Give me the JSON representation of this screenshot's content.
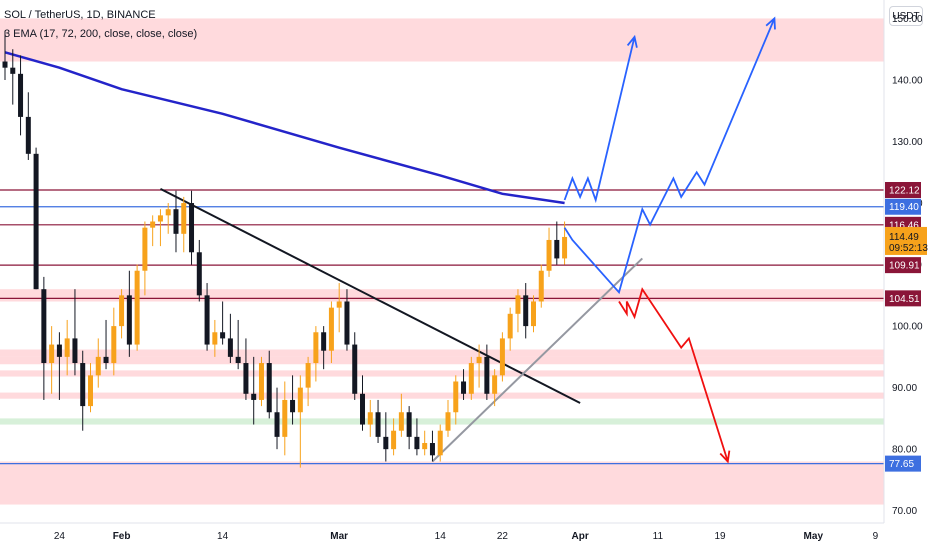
{
  "header": {
    "symbol_line": "SOL / TetherUS, 1D, BINANCE",
    "indicator_line": "3 EMA (17, 72, 200, close, close, close)"
  },
  "currency_button": "USDT",
  "colors": {
    "up": "#f7a21b",
    "down": "#131722",
    "ema": "#2424c9",
    "resistance_line": "#8a1538",
    "blue_level": "#3d6fe0",
    "zone_red": "#ffd1d4",
    "zone_green": "#cdeccf",
    "trend_black": "#131722",
    "trend_gray": "#9598a1",
    "arrow_blue": "#2962ff",
    "arrow_red": "#f01010"
  },
  "chart_data": {
    "type": "candlestick",
    "symbol": "SOL / TetherUS",
    "interval": "1D",
    "exchange": "BINANCE",
    "y_axis": {
      "range": [
        68,
        153
      ],
      "ticks": [
        70,
        80,
        90,
        100,
        110,
        120,
        130,
        140,
        150
      ],
      "tick_labels": [
        "70.00",
        "80.00",
        "90.00",
        "100.00",
        "110.00",
        "120.00",
        "130.00",
        "140.00",
        "150.00"
      ]
    },
    "x_axis": {
      "start_date": "2022-01-17",
      "end_date": "2022-05-11",
      "ticks": [
        {
          "date": "2022-01-24",
          "label": "24"
        },
        {
          "date": "2022-02-01",
          "label": "Feb"
        },
        {
          "date": "2022-02-14",
          "label": "14"
        },
        {
          "date": "2022-03-01",
          "label": "Mar"
        },
        {
          "date": "2022-03-14",
          "label": "14"
        },
        {
          "date": "2022-03-22",
          "label": "22"
        },
        {
          "date": "2022-04-01",
          "label": "Apr"
        },
        {
          "date": "2022-04-11",
          "label": "11"
        },
        {
          "date": "2022-04-19",
          "label": "19"
        },
        {
          "date": "2022-05-01",
          "label": "May"
        },
        {
          "date": "2022-05-09",
          "label": "9"
        }
      ]
    },
    "ohlc": [
      [
        "2022-01-17",
        143,
        148,
        140,
        142
      ],
      [
        "2022-01-18",
        142,
        145,
        136,
        141
      ],
      [
        "2022-01-19",
        141,
        144,
        131,
        134
      ],
      [
        "2022-01-20",
        134,
        138,
        127,
        128
      ],
      [
        "2022-01-21",
        128,
        129,
        106,
        106
      ],
      [
        "2022-01-22",
        106,
        108,
        88,
        94
      ],
      [
        "2022-01-23",
        94,
        100,
        89,
        97
      ],
      [
        "2022-01-24",
        97,
        99,
        88,
        95
      ],
      [
        "2022-01-25",
        95,
        101,
        92,
        98
      ],
      [
        "2022-01-26",
        98,
        106,
        92,
        94
      ],
      [
        "2022-01-27",
        94,
        96,
        83,
        87
      ],
      [
        "2022-01-28",
        87,
        94,
        86,
        92
      ],
      [
        "2022-01-29",
        92,
        98,
        90,
        95
      ],
      [
        "2022-01-30",
        95,
        101,
        93,
        94
      ],
      [
        "2022-01-31",
        94,
        103,
        92,
        100
      ],
      [
        "2022-02-01",
        100,
        106,
        98,
        105
      ],
      [
        "2022-02-02",
        105,
        109,
        95,
        97
      ],
      [
        "2022-02-03",
        97,
        110,
        96,
        109
      ],
      [
        "2022-02-04",
        109,
        117,
        105,
        116
      ],
      [
        "2022-02-05",
        116,
        118,
        113,
        117
      ],
      [
        "2022-02-06",
        117,
        119,
        113,
        118
      ],
      [
        "2022-02-07",
        118,
        120,
        115,
        119
      ],
      [
        "2022-02-08",
        119,
        122,
        112,
        115
      ],
      [
        "2022-02-09",
        115,
        121,
        112,
        120
      ],
      [
        "2022-02-10",
        120,
        122,
        110,
        112
      ],
      [
        "2022-02-11",
        112,
        114,
        104,
        105
      ],
      [
        "2022-02-12",
        105,
        107,
        96,
        97
      ],
      [
        "2022-02-13",
        97,
        101,
        95,
        99
      ],
      [
        "2022-02-14",
        99,
        104,
        97,
        98
      ],
      [
        "2022-02-15",
        98,
        102,
        94,
        95
      ],
      [
        "2022-02-16",
        95,
        101,
        93,
        94
      ],
      [
        "2022-02-17",
        94,
        98,
        88,
        89
      ],
      [
        "2022-02-18",
        89,
        95,
        84,
        88
      ],
      [
        "2022-02-19",
        88,
        95,
        87,
        94
      ],
      [
        "2022-02-20",
        94,
        96,
        85,
        86
      ],
      [
        "2022-02-21",
        86,
        90,
        80,
        82
      ],
      [
        "2022-02-22",
        82,
        91,
        79,
        88
      ],
      [
        "2022-02-23",
        88,
        92,
        84,
        86
      ],
      [
        "2022-02-24",
        86,
        92,
        77,
        90
      ],
      [
        "2022-02-25",
        90,
        95,
        87,
        94
      ],
      [
        "2022-02-26",
        94,
        100,
        91,
        99
      ],
      [
        "2022-02-27",
        99,
        100,
        93,
        96
      ],
      [
        "2022-02-28",
        96,
        104,
        94,
        103
      ],
      [
        "2022-03-01",
        103,
        107,
        99,
        104
      ],
      [
        "2022-03-02",
        104,
        106,
        96,
        97
      ],
      [
        "2022-03-03",
        97,
        99,
        88,
        89
      ],
      [
        "2022-03-04",
        89,
        92,
        83,
        84
      ],
      [
        "2022-03-05",
        84,
        88,
        82,
        86
      ],
      [
        "2022-03-06",
        86,
        88,
        81,
        82
      ],
      [
        "2022-03-07",
        82,
        86,
        78,
        80
      ],
      [
        "2022-03-08",
        80,
        85,
        79,
        83
      ],
      [
        "2022-03-09",
        83,
        89,
        82,
        86
      ],
      [
        "2022-03-10",
        86,
        87,
        80,
        82
      ],
      [
        "2022-03-11",
        82,
        85,
        79,
        80
      ],
      [
        "2022-03-12",
        80,
        83,
        79,
        81
      ],
      [
        "2022-03-13",
        81,
        83,
        78,
        79
      ],
      [
        "2022-03-14",
        79,
        84,
        78,
        83
      ],
      [
        "2022-03-15",
        83,
        88,
        82,
        86
      ],
      [
        "2022-03-16",
        86,
        92,
        84,
        91
      ],
      [
        "2022-03-17",
        91,
        93,
        88,
        89
      ],
      [
        "2022-03-18",
        89,
        95,
        88,
        94
      ],
      [
        "2022-03-19",
        94,
        97,
        90,
        95
      ],
      [
        "2022-03-20",
        95,
        97,
        88,
        89
      ],
      [
        "2022-03-21",
        89,
        93,
        87,
        92
      ],
      [
        "2022-03-22",
        92,
        99,
        91,
        98
      ],
      [
        "2022-03-23",
        98,
        103,
        96,
        102
      ],
      [
        "2022-03-24",
        102,
        106,
        99,
        105
      ],
      [
        "2022-03-25",
        105,
        107,
        98,
        100
      ],
      [
        "2022-03-26",
        100,
        105,
        99,
        104
      ],
      [
        "2022-03-27",
        104,
        110,
        103,
        109
      ],
      [
        "2022-03-28",
        109,
        116,
        108,
        114
      ],
      [
        "2022-03-29",
        114,
        117,
        110,
        111
      ],
      [
        "2022-03-30",
        111,
        117,
        110,
        114.49
      ]
    ],
    "ema_200": [
      [
        "2022-01-17",
        144.5
      ],
      [
        "2022-01-24",
        142
      ],
      [
        "2022-02-01",
        138.5
      ],
      [
        "2022-02-14",
        134.5
      ],
      [
        "2022-03-01",
        129
      ],
      [
        "2022-03-14",
        124.5
      ],
      [
        "2022-03-22",
        121.5
      ],
      [
        "2022-03-30",
        120
      ]
    ],
    "horizontal_levels": [
      {
        "price": 122.12,
        "label": "122.12",
        "color": "resistance"
      },
      {
        "price": 119.4,
        "label": "119.40",
        "color": "blue"
      },
      {
        "price": 116.46,
        "label": "116.46",
        "color": "resistance"
      },
      {
        "price": 109.91,
        "label": "109.91",
        "color": "resistance"
      },
      {
        "price": 104.51,
        "label": "104.51",
        "color": "resistance"
      },
      {
        "price": 77.65,
        "label": "77.65",
        "color": "blue"
      }
    ],
    "current_price": {
      "value": "114.49",
      "countdown": "09:52:13"
    },
    "zones": [
      {
        "from": 143,
        "to": 150,
        "color": "red"
      },
      {
        "from": 104,
        "to": 106,
        "color": "red"
      },
      {
        "from": 95,
        "to": 96.2,
        "color": "red"
      },
      {
        "from": 93.8,
        "to": 95,
        "color": "red"
      },
      {
        "from": 91.8,
        "to": 92.8,
        "color": "red"
      },
      {
        "from": 88.2,
        "to": 89.2,
        "color": "red"
      },
      {
        "from": 84,
        "to": 85,
        "color": "green"
      },
      {
        "from": 71,
        "to": 78,
        "color": "red"
      }
    ],
    "trendlines": [
      {
        "name": "descending",
        "from": [
          "2022-02-06",
          122.3
        ],
        "to": [
          "2022-04-01",
          87.5
        ],
        "color": "black"
      },
      {
        "name": "ascending",
        "from": [
          "2022-03-13",
          78
        ],
        "to": [
          "2022-04-09",
          111
        ],
        "color": "gray"
      }
    ],
    "projections": [
      {
        "name": "bull-short",
        "color": "blue",
        "arrow": true,
        "points": [
          [
            "2022-03-30",
            120.5
          ],
          [
            "2022-03-31",
            124
          ],
          [
            "2022-04-01",
            121
          ],
          [
            "2022-04-02",
            124
          ],
          [
            "2022-04-03",
            120.5
          ],
          [
            "2022-04-08",
            147
          ]
        ]
      },
      {
        "name": "bull-long",
        "color": "blue",
        "arrow": true,
        "points": [
          [
            "2022-03-30",
            116
          ],
          [
            "2022-03-31",
            114
          ],
          [
            "2022-04-06",
            105.5
          ],
          [
            "2022-04-09",
            119
          ],
          [
            "2022-04-10",
            116.5
          ],
          [
            "2022-04-13",
            124
          ],
          [
            "2022-04-14",
            121
          ],
          [
            "2022-04-16",
            125
          ],
          [
            "2022-04-17",
            123
          ],
          [
            "2022-04-26",
            150
          ]
        ]
      },
      {
        "name": "bear",
        "color": "red",
        "arrow": true,
        "points": [
          [
            "2022-04-06",
            104
          ],
          [
            "2022-04-07",
            102
          ],
          [
            "2022-04-07",
            104
          ],
          [
            "2022-04-08",
            101.5
          ],
          [
            "2022-04-09",
            106
          ],
          [
            "2022-04-14",
            96.5
          ],
          [
            "2022-04-15",
            98
          ],
          [
            "2022-04-20",
            78
          ]
        ]
      }
    ]
  }
}
